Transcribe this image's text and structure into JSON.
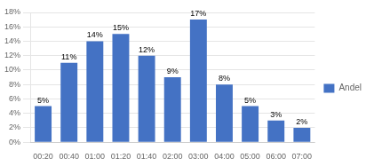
{
  "chart_data": {
    "type": "bar",
    "categories": [
      "00:20",
      "00:40",
      "01:00",
      "01:20",
      "01:40",
      "02:00",
      "03:00",
      "04:00",
      "05:00",
      "06:00",
      "07:00"
    ],
    "series": [
      {
        "name": "Andel",
        "color": "#4472C4",
        "values": [
          5,
          11,
          14,
          15,
          12,
          9,
          17,
          8,
          5,
          3,
          2
        ],
        "value_labels": [
          "5%",
          "11%",
          "14%",
          "15%",
          "12%",
          "9%",
          "17%",
          "8%",
          "5%",
          "3%",
          "2%"
        ]
      }
    ],
    "ylim": [
      0,
      18
    ],
    "yticks": [
      {
        "value": 0,
        "label": "0%"
      },
      {
        "value": 2,
        "label": "2%"
      },
      {
        "value": 4,
        "label": "4%"
      },
      {
        "value": 6,
        "label": "6%"
      },
      {
        "value": 8,
        "label": "8%"
      },
      {
        "value": 10,
        "label": "10%"
      },
      {
        "value": 12,
        "label": "12%"
      },
      {
        "value": 14,
        "label": "14%"
      },
      {
        "value": 16,
        "label": "16%"
      },
      {
        "value": 18,
        "label": "18%"
      }
    ],
    "grid": true,
    "legend": "right",
    "data_labels": true
  }
}
